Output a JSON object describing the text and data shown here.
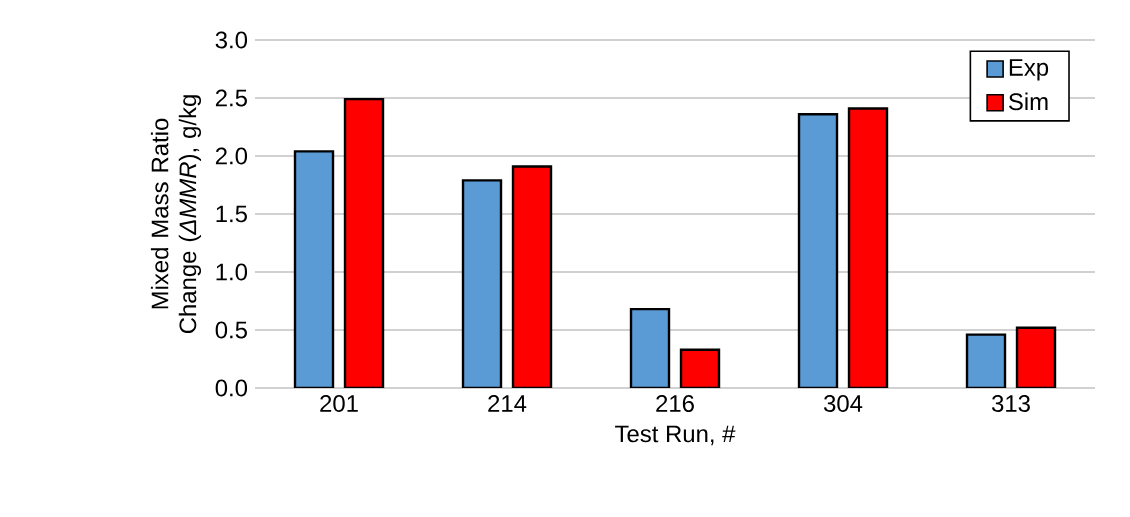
{
  "chart_data": {
    "type": "bar",
    "xlabel": "Test Run, #",
    "ylabel": "Mixed Mass Ratio Change (*ΔMMR*), g/kg",
    "categories": [
      "201",
      "214",
      "216",
      "304",
      "313"
    ],
    "series": [
      {
        "name": "Exp",
        "color": "#5b9bd5",
        "values": [
          2.04,
          1.79,
          0.68,
          2.36,
          0.46
        ]
      },
      {
        "name": "Sim",
        "color": "#ff0000",
        "values": [
          2.49,
          1.91,
          0.33,
          2.41,
          0.52
        ]
      }
    ],
    "ylim": [
      0,
      3.0
    ],
    "yticks": [
      {
        "value": 0,
        "label": "0.0"
      },
      {
        "value": 0.5,
        "label": "0.5"
      },
      {
        "value": 1.0,
        "label": "1.0"
      },
      {
        "value": 1.5,
        "label": "1.5"
      },
      {
        "value": 2.0,
        "label": "2.0"
      },
      {
        "value": 2.5,
        "label": "2.5"
      },
      {
        "value": 3.0,
        "label": "3.0"
      }
    ],
    "grid": "y",
    "legend": "top right"
  }
}
